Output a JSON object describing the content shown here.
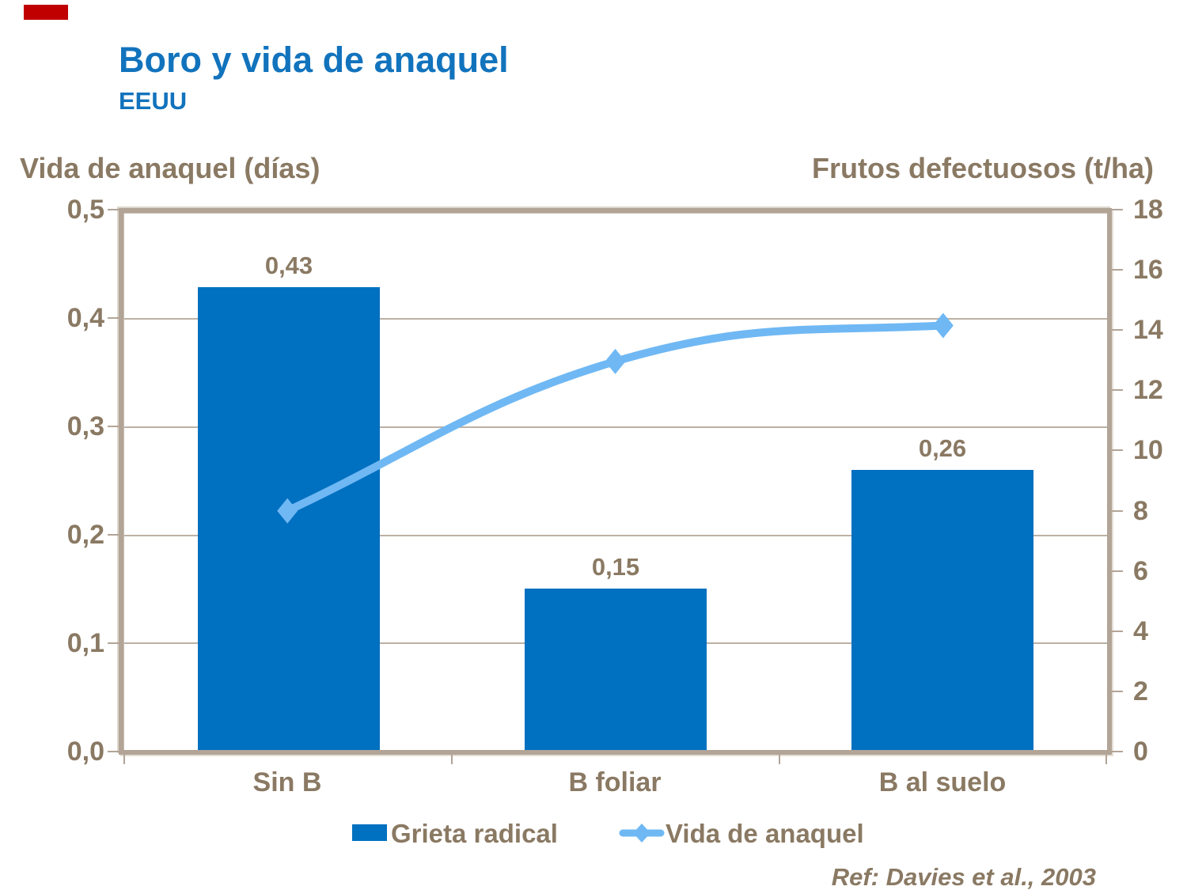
{
  "slide": {
    "title": "Boro y vida de anaquel",
    "subtitle": "EEUU",
    "reference": "Ref: Davies et al., 2003",
    "accent_color": "#C00000",
    "title_color": "#1273BD",
    "chart_text_color": "#8A7963"
  },
  "chart_data": {
    "type": "combo-bar-line",
    "categories": [
      "Sin B",
      "B foliar",
      "B al suelo"
    ],
    "series": [
      {
        "name": "Grieta radical",
        "chart": "bar",
        "axis": "left",
        "values": [
          0.43,
          0.15,
          0.26
        ],
        "value_labels": [
          "0,43",
          "0,15",
          "0,26"
        ],
        "color": "#0070C0"
      },
      {
        "name": "Vida de anaquel",
        "chart": "line",
        "axis": "right",
        "values": [
          8,
          13,
          14.2
        ],
        "color": "#6FB8F4",
        "marker": "diamond"
      }
    ],
    "axes": {
      "left": {
        "title": "Vida de anaquel (días)",
        "min": 0,
        "max": 0.5,
        "step": 0.1,
        "ticks": [
          "0,0",
          "0,1",
          "0,2",
          "0,3",
          "0,4",
          "0,5"
        ]
      },
      "right": {
        "title": "Frutos defectuosos (t/ha)",
        "min": 0,
        "max": 18,
        "step": 2,
        "ticks": [
          "0",
          "2",
          "4",
          "6",
          "8",
          "10",
          "12",
          "14",
          "16",
          "18"
        ]
      }
    },
    "grid": true,
    "legend_position": "bottom"
  }
}
